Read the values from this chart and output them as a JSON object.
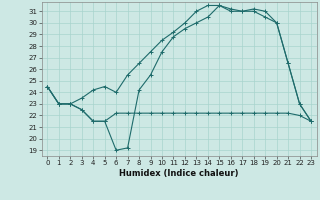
{
  "xlabel": "Humidex (Indice chaleur)",
  "bg_color": "#cde8e4",
  "grid_color": "#a8d4ce",
  "line_color": "#1e6b6b",
  "xlim": [
    -0.5,
    23.5
  ],
  "ylim": [
    18.5,
    31.8
  ],
  "yticks": [
    19,
    20,
    21,
    22,
    23,
    24,
    25,
    26,
    27,
    28,
    29,
    30,
    31
  ],
  "xticks": [
    0,
    1,
    2,
    3,
    4,
    5,
    6,
    7,
    8,
    9,
    10,
    11,
    12,
    13,
    14,
    15,
    16,
    17,
    18,
    19,
    20,
    21,
    22,
    23
  ],
  "line1_x": [
    0,
    1,
    2,
    3,
    4,
    5,
    6,
    7,
    8,
    9,
    10,
    11,
    12,
    13,
    14,
    15,
    16,
    17,
    18,
    19,
    20,
    21,
    22,
    23
  ],
  "line1_y": [
    24.5,
    23.0,
    23.0,
    22.5,
    21.5,
    21.5,
    19.0,
    19.2,
    24.2,
    25.5,
    27.5,
    28.8,
    29.5,
    30.0,
    30.5,
    31.5,
    31.0,
    31.0,
    31.0,
    30.5,
    30.0,
    26.5,
    23.0,
    21.5
  ],
  "line2_x": [
    0,
    1,
    2,
    3,
    4,
    5,
    6,
    7,
    8,
    9,
    10,
    11,
    12,
    13,
    14,
    15,
    16,
    17,
    18,
    19,
    20,
    21,
    22,
    23
  ],
  "line2_y": [
    24.5,
    23.0,
    23.0,
    23.5,
    24.2,
    24.5,
    24.0,
    25.5,
    26.5,
    27.5,
    28.5,
    29.2,
    30.0,
    31.0,
    31.5,
    31.5,
    31.2,
    31.0,
    31.2,
    31.0,
    30.0,
    26.5,
    23.0,
    21.5
  ],
  "line3_x": [
    0,
    1,
    2,
    3,
    4,
    5,
    6,
    7,
    8,
    9,
    10,
    11,
    12,
    13,
    14,
    15,
    16,
    17,
    18,
    19,
    20,
    21,
    22,
    23
  ],
  "line3_y": [
    24.5,
    23.0,
    23.0,
    22.5,
    21.5,
    21.5,
    22.2,
    22.2,
    22.2,
    22.2,
    22.2,
    22.2,
    22.2,
    22.2,
    22.2,
    22.2,
    22.2,
    22.2,
    22.2,
    22.2,
    22.2,
    22.2,
    22.0,
    21.5
  ],
  "tick_fontsize": 5.0,
  "xlabel_fontsize": 6.0,
  "linewidth": 0.8,
  "markersize": 2.5
}
